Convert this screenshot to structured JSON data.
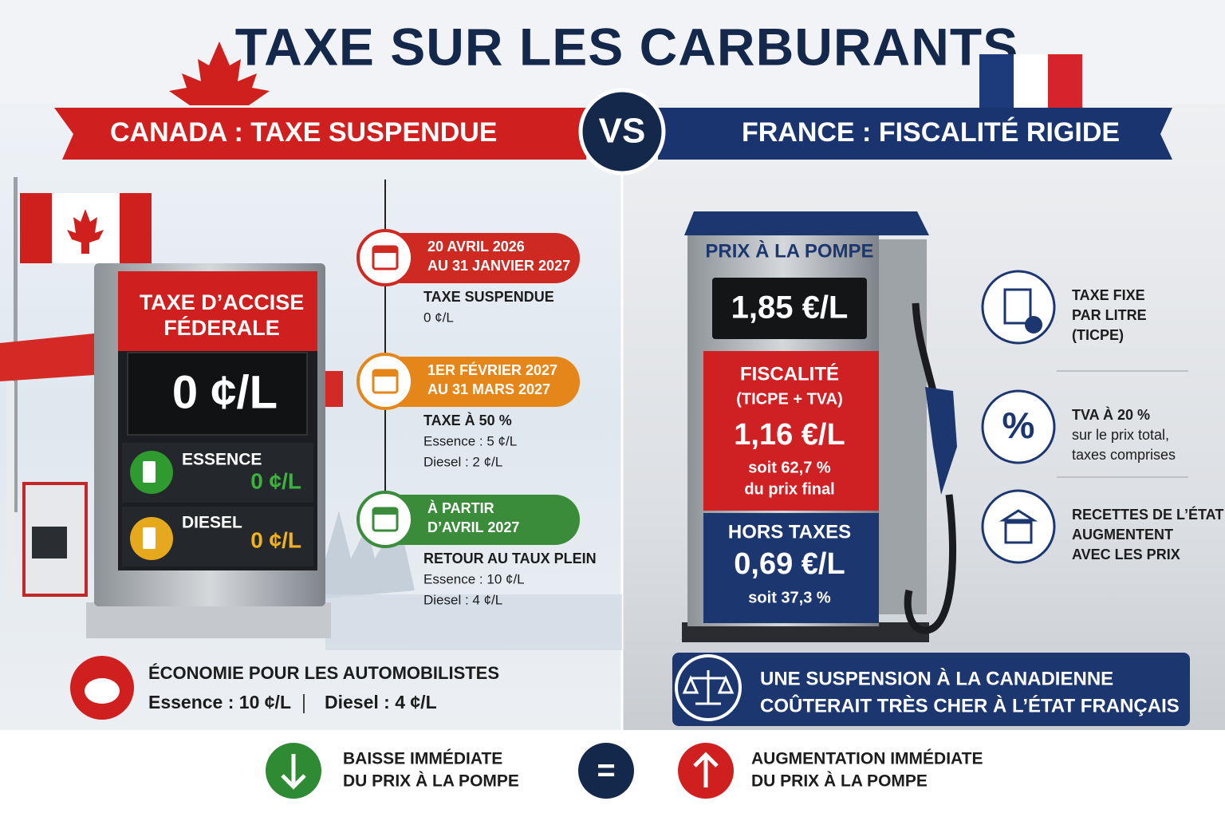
{
  "title": "TAXE SUR LES CARBURANTS",
  "vs": "VS",
  "canada": {
    "banner": "CANADA : TAXE SUSPENDUE",
    "sign": {
      "title": [
        "TAXE D’ACCISE",
        "FÉDERALE"
      ],
      "main": "0 ¢/L",
      "rows": [
        {
          "label": "ESSENCE",
          "value": "0 ¢/L"
        },
        {
          "label": "DIESEL",
          "value": "0 ¢/L"
        }
      ]
    },
    "timeline": [
      {
        "date": [
          "20 AVRIL 2026",
          "AU 31 JANVIER 2027"
        ],
        "status": "TAXE SUSPENDUE",
        "details": [
          "0 ¢/L"
        ]
      },
      {
        "date": [
          "1ER FÉVRIER 2027",
          "AU 31 MARS 2027"
        ],
        "status": "TAXE À 50 %",
        "details": [
          "Essence : 5 ¢/L",
          "Diesel : 2 ¢/L"
        ]
      },
      {
        "date": [
          "À PARTIR",
          "D’AVRIL 2027"
        ],
        "status": "RETOUR AU TAUX PLEIN",
        "details": [
          "Essence : 10 ¢/L",
          "Diesel : 4 ¢/L"
        ]
      }
    ],
    "savings": {
      "title": "ÉCONOMIE POUR LES AUTOMOBILISTES",
      "items": [
        "Essence : 10 ¢/L",
        "Diesel : 4 ¢/L"
      ]
    }
  },
  "france": {
    "banner": "FRANCE : FISCALITÉ RIGIDE",
    "pump": {
      "header": "PRIX À LA POMPE",
      "price": "1,85 €/L",
      "tax": {
        "title": "FISCALITÉ",
        "subtitle": "(TICPE + TVA)",
        "value": "1,16 €/L",
        "share": [
          "soit 62,7 %",
          "du prix final"
        ]
      },
      "net": {
        "title": "HORS TAXES",
        "value": "0,69 €/L",
        "share": "soit 37,3 %"
      }
    },
    "facts": [
      {
        "lines": [
          "TAXE FIXE",
          "PAR LITRE",
          "(TICPE)"
        ]
      },
      {
        "icon_text": "%",
        "lines": [
          "TVA À 20 %",
          "sur le prix total,",
          "taxes comprises"
        ]
      },
      {
        "lines": [
          "RECETTES DE L’ÉTAT",
          "AUGMENTENT",
          "AVEC LES PRIX"
        ]
      }
    ],
    "callout": [
      "UNE SUSPENSION À LA CANADIENNE",
      "COÛTERAIT TRÈS CHER À L’ÉTAT FRANÇAIS"
    ]
  },
  "bottom": {
    "left": [
      "BAISSE IMMÉDIATE",
      "DU PRIX À LA POMPE"
    ],
    "equals": "=",
    "right": [
      "AUGMENTATION IMMÉDIATE",
      "DU PRIX À LA POMPE"
    ]
  }
}
